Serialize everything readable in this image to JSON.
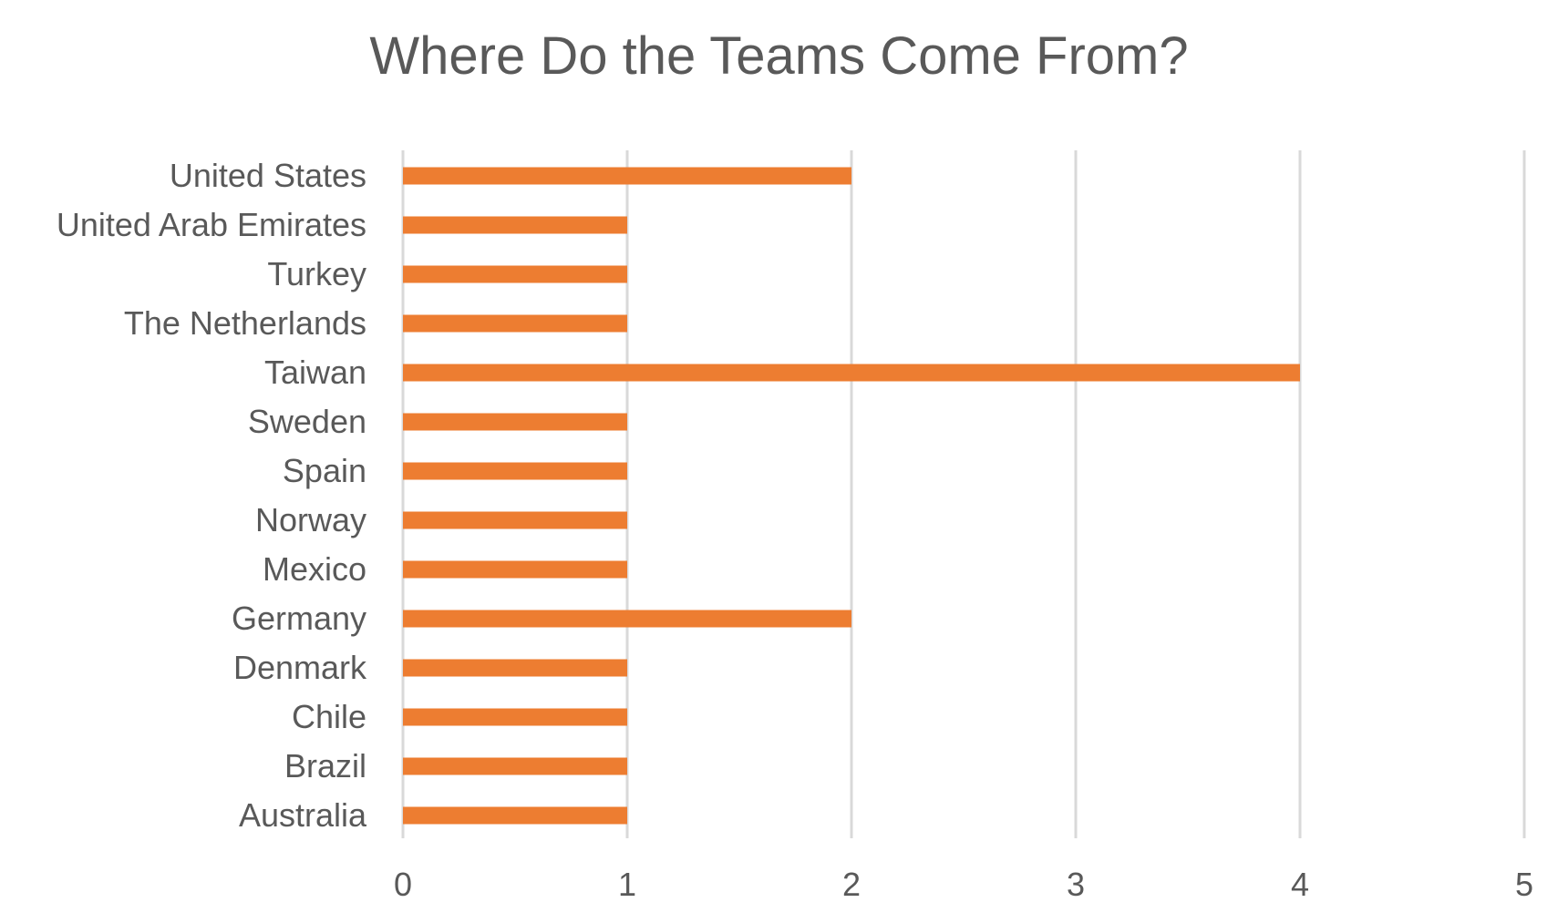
{
  "chart_data": {
    "type": "bar",
    "orientation": "horizontal",
    "title": "Where Do the Teams Come From?",
    "xlabel": "",
    "ylabel": "",
    "categories": [
      "United States",
      "United Arab Emirates",
      "Turkey",
      "The Netherlands",
      "Taiwan",
      "Sweden",
      "Spain",
      "Norway",
      "Mexico",
      "Germany",
      "Denmark",
      "Chile",
      "Brazil",
      "Australia"
    ],
    "values": [
      2,
      1,
      1,
      1,
      4,
      1,
      1,
      1,
      1,
      2,
      1,
      1,
      1,
      1
    ],
    "xlim": [
      0,
      5
    ],
    "xticks": [
      "0",
      "1",
      "2",
      "3",
      "4",
      "5"
    ],
    "grid": "vertical",
    "legend": "none",
    "bar_color": "#ED7D31",
    "grid_color": "#D9D9D9"
  }
}
